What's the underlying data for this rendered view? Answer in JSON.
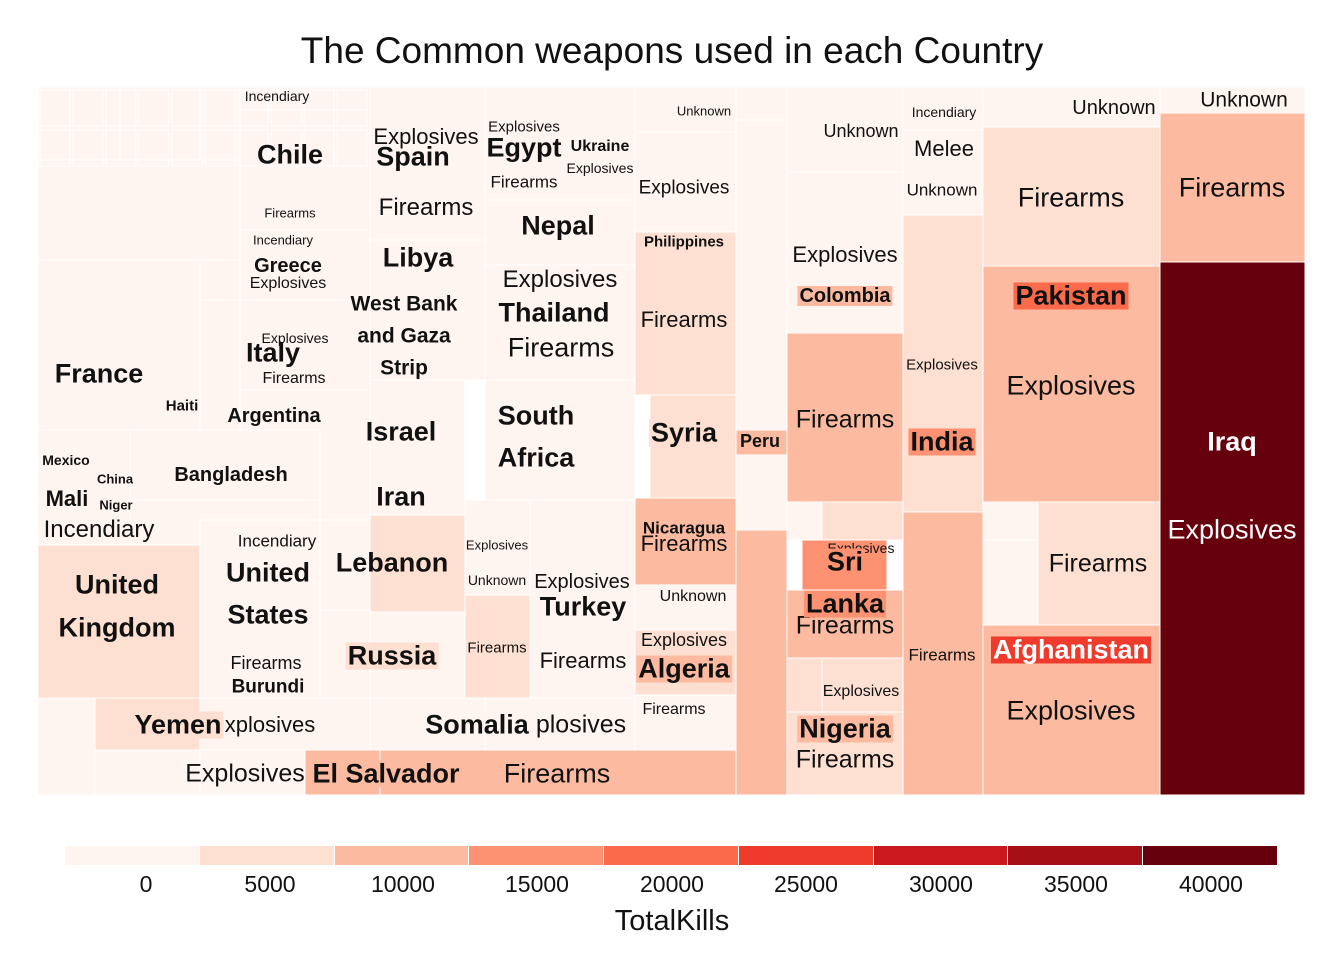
{
  "chart_data": {
    "type": "treemap",
    "title": "The Common weapons used in each Country",
    "color_metric": "TotalKills",
    "colors": {
      "scale": [
        "#fff5f0",
        "#fee0d2",
        "#fcbba1",
        "#fc9272",
        "#fb6a4a",
        "#ef3b2c",
        "#cb181d",
        "#a50f15",
        "#67000d"
      ],
      "border": "#ffffff"
    },
    "legend": {
      "title": "TotalKills",
      "ticks": [
        "0",
        "5000",
        "10000",
        "15000",
        "20000",
        "25000",
        "30000",
        "35000",
        "40000"
      ]
    },
    "countries": [
      {
        "name": "Iraq",
        "weapons": [
          "Unknown",
          "Firearms",
          "Explosives"
        ],
        "dominant_kills": 40000
      },
      {
        "name": "Pakistan",
        "weapons": [
          "Unknown",
          "Firearms",
          "Explosives"
        ],
        "dominant_kills": 12000
      },
      {
        "name": "Afghanistan",
        "weapons": [
          "Firearms",
          "Explosives"
        ],
        "dominant_kills": 12000
      },
      {
        "name": "India",
        "weapons": [
          "Incendiary",
          "Melee",
          "Unknown",
          "Explosives",
          "Firearms"
        ],
        "dominant_kills": 8000
      },
      {
        "name": "Colombia",
        "weapons": [
          "Unknown",
          "Explosives",
          "Firearms"
        ],
        "dominant_kills": 9000
      },
      {
        "name": "Sri Lanka",
        "weapons": [
          "Explosives",
          "Firearms"
        ],
        "dominant_kills": 11000
      },
      {
        "name": "Nigeria",
        "weapons": [
          "Explosives",
          "Firearms"
        ],
        "dominant_kills": 9000
      },
      {
        "name": "Peru",
        "weapons": [
          "Explosives",
          "Firearms"
        ],
        "dominant_kills": 9000
      },
      {
        "name": "Philippines",
        "weapons": [
          "Unknown",
          "Explosives",
          "Firearms"
        ],
        "dominant_kills": 3000
      },
      {
        "name": "Syria",
        "weapons": [
          "Explosives"
        ],
        "dominant_kills": 5000
      },
      {
        "name": "Nicaragua",
        "weapons": [
          "Firearms"
        ],
        "dominant_kills": 6000
      },
      {
        "name": "Algeria",
        "weapons": [
          "Unknown",
          "Explosives",
          "Firearms"
        ],
        "dominant_kills": 6000
      },
      {
        "name": "Egypt",
        "weapons": [
          "Explosives",
          "Firearms"
        ],
        "dominant_kills": 800
      },
      {
        "name": "Ukraine",
        "weapons": [
          "Explosives"
        ],
        "dominant_kills": 800
      },
      {
        "name": "Nepal",
        "weapons": [
          "Firearms"
        ],
        "dominant_kills": 800
      },
      {
        "name": "Thailand",
        "weapons": [
          "Explosives",
          "Firearms"
        ],
        "dominant_kills": 1000
      },
      {
        "name": "South Africa",
        "weapons": [
          "Firearms"
        ],
        "dominant_kills": 1500
      },
      {
        "name": "Turkey",
        "weapons": [
          "Explosives",
          "Unknown",
          "Firearms"
        ],
        "dominant_kills": 1500
      },
      {
        "name": "Somalia",
        "weapons": [
          "Explosives",
          "Firearms"
        ],
        "dominant_kills": 2000
      },
      {
        "name": "El Salvador",
        "weapons": [
          "Explosives",
          "Firearms"
        ],
        "dominant_kills": 9000
      },
      {
        "name": "Chile",
        "weapons": [
          "Incendiary",
          "Firearms"
        ],
        "dominant_kills": 300
      },
      {
        "name": "Spain",
        "weapons": [
          "Explosives",
          "Firearms"
        ],
        "dominant_kills": 500
      },
      {
        "name": "Libya",
        "weapons": [
          "Firearms"
        ],
        "dominant_kills": 400
      },
      {
        "name": "Greece",
        "weapons": [
          "Incendiary",
          "Explosives"
        ],
        "dominant_kills": 100
      },
      {
        "name": "West Bank and Gaza Strip",
        "weapons": [
          "Explosives",
          "Firearms"
        ],
        "dominant_kills": 800
      },
      {
        "name": "Italy",
        "weapons": [
          "Explosives",
          "Firearms"
        ],
        "dominant_kills": 300
      },
      {
        "name": "France",
        "weapons": [
          "Explosives"
        ],
        "dominant_kills": 200
      },
      {
        "name": "Argentina",
        "weapons": [
          "Firearms"
        ],
        "dominant_kills": 300
      },
      {
        "name": "Haiti",
        "weapons": [
          "Firearms"
        ],
        "dominant_kills": 200
      },
      {
        "name": "Israel",
        "weapons": [
          "Explosives"
        ],
        "dominant_kills": 900
      },
      {
        "name": "Iran",
        "weapons": [
          "Explosives"
        ],
        "dominant_kills": 900
      },
      {
        "name": "Lebanon",
        "weapons": [
          "Explosives"
        ],
        "dominant_kills": 1800
      },
      {
        "name": "Bangladesh",
        "weapons": [
          "Explosives"
        ],
        "dominant_kills": 300
      },
      {
        "name": "Mexico",
        "weapons": [
          "Firearms"
        ],
        "dominant_kills": 200
      },
      {
        "name": "China",
        "weapons": [
          "Explosives"
        ],
        "dominant_kills": 200
      },
      {
        "name": "Mali",
        "weapons": [
          "Incendiary",
          "Firearms"
        ],
        "dominant_kills": 200
      },
      {
        "name": "Niger",
        "weapons": [
          "Firearms"
        ],
        "dominant_kills": 200
      },
      {
        "name": "United Kingdom",
        "weapons": [
          "Explosives"
        ],
        "dominant_kills": 1500
      },
      {
        "name": "United States",
        "weapons": [
          "Incendiary",
          "Firearms"
        ],
        "dominant_kills": 1000
      },
      {
        "name": "Burundi",
        "weapons": [
          "Firearms"
        ],
        "dominant_kills": 800
      },
      {
        "name": "Russia",
        "weapons": [
          "Explosives"
        ],
        "dominant_kills": 1800
      },
      {
        "name": "Yemen",
        "weapons": [
          "Explosives"
        ],
        "dominant_kills": 2500
      }
    ]
  }
}
